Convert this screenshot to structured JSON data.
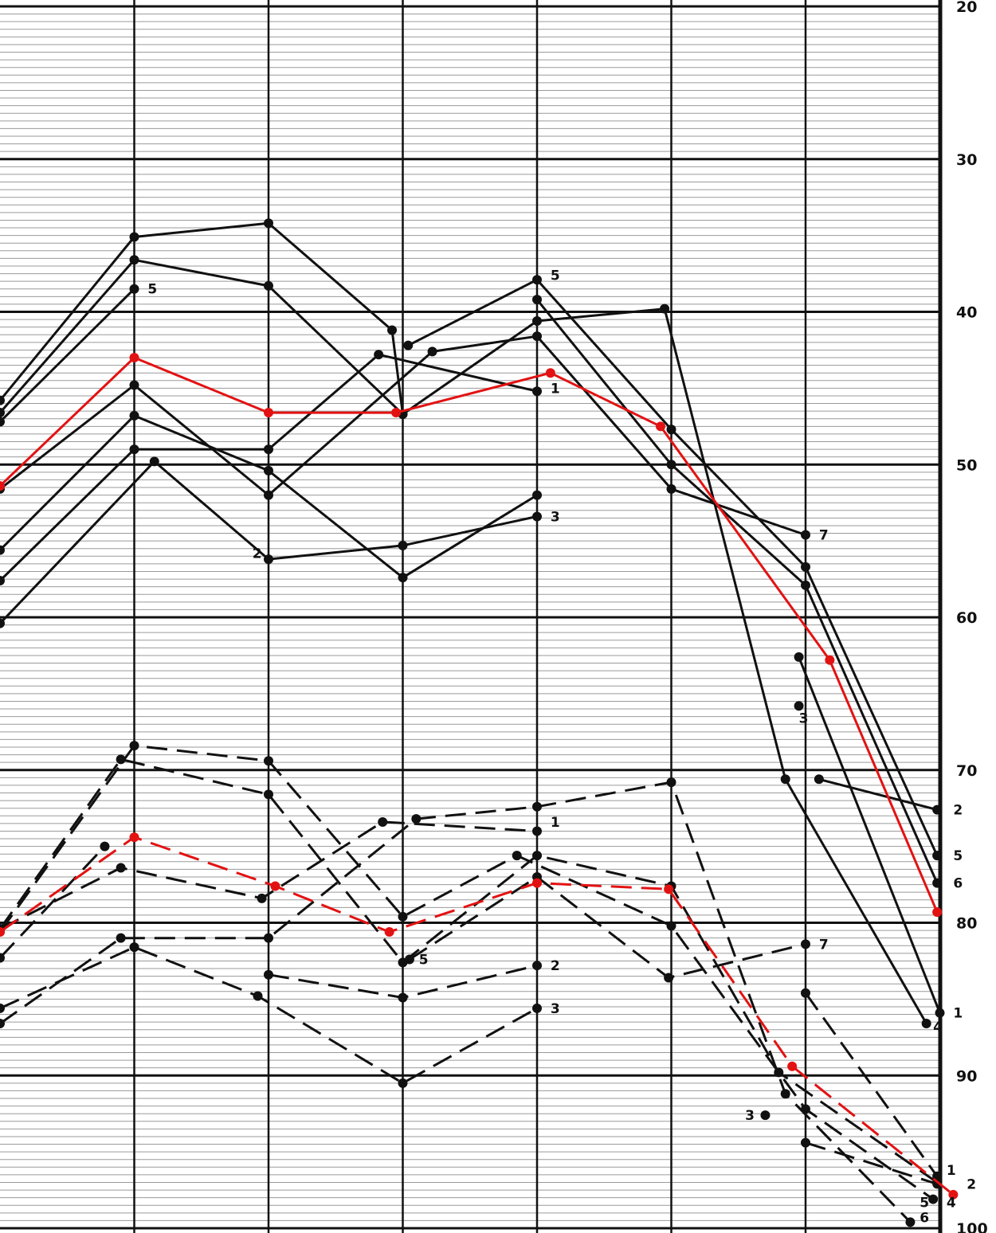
{
  "chart_data": {
    "type": "line",
    "title": "",
    "xlabel": "",
    "ylabel": "",
    "ylim": [
      20,
      100
    ],
    "y_ticks": [
      "20",
      "30",
      "40",
      "50",
      "60",
      "70",
      "80",
      "90",
      "100"
    ],
    "y_axis_side": "right",
    "grid": "minor horizontal every 0.5 units, major every 10 units, vertical column lines",
    "colors": {
      "line": "#111111",
      "highlight": "#e31212"
    },
    "groups": [
      {
        "name": "",
        "style": "solid",
        "series": [
          {
            "name": "",
            "color": "#111111",
            "points": [
              [
                -0.5,
                45.8
              ],
              [
                0.5,
                35.1
              ],
              [
                1.5,
                34.2
              ],
              [
                2.42,
                41.2
              ],
              [
                2.5,
                46.7
              ]
            ]
          },
          {
            "name": "",
            "color": "#111111",
            "points": [
              [
                -0.5,
                46.6
              ],
              [
                0.5,
                36.6
              ],
              [
                1.5,
                38.3
              ],
              [
                2.5,
                46.7
              ],
              [
                3.5,
                40.6
              ],
              [
                4.45,
                39.8
              ],
              [
                5.35,
                70.6
              ],
              [
                6.4,
                86.6
              ]
            ]
          },
          {
            "name": "",
            "color": "#111111",
            "points": [
              [
                -0.5,
                47.2
              ],
              [
                0.5,
                38.5
              ]
            ]
          },
          {
            "name": "",
            "color": "#111111",
            "points": [
              [
                -0.5,
                51.6
              ],
              [
                0.5,
                44.8
              ],
              [
                1.5,
                52.0
              ],
              [
                2.72,
                42.6
              ],
              [
                3.5,
                41.6
              ],
              [
                4.5,
                51.6
              ],
              [
                5.5,
                54.6
              ]
            ]
          },
          {
            "name": "",
            "color": "#111111",
            "points": [
              [
                -0.5,
                55.6
              ],
              [
                0.5,
                46.8
              ],
              [
                1.5,
                50.4
              ],
              [
                2.5,
                57.4
              ],
              [
                3.5,
                52.0
              ]
            ]
          },
          {
            "name": "",
            "color": "#111111",
            "points": [
              [
                -0.5,
                57.6
              ],
              [
                0.5,
                49.0
              ],
              [
                1.5,
                49.0
              ],
              [
                2.32,
                42.8
              ],
              [
                3.5,
                45.2
              ]
            ]
          },
          {
            "name": "",
            "color": "#111111",
            "points": [
              [
                -0.5,
                60.4
              ],
              [
                0.65,
                49.8
              ],
              [
                1.5,
                56.2
              ],
              [
                2.5,
                55.3
              ],
              [
                3.5,
                53.4
              ]
            ]
          },
          {
            "name": "",
            "color": "#111111",
            "points": [
              [
                2.54,
                42.2
              ],
              [
                3.5,
                37.9
              ],
              [
                4.5,
                47.7
              ],
              [
                5.5,
                56.7
              ],
              [
                6.48,
                75.6
              ]
            ]
          },
          {
            "name": "",
            "color": "#111111",
            "points": [
              [
                3.5,
                39.2
              ],
              [
                4.5,
                50.0
              ],
              [
                5.5,
                57.9
              ],
              [
                6.48,
                77.4
              ]
            ]
          },
          {
            "name": "",
            "color": "#111111",
            "points": [
              [
                5.45,
                62.6
              ],
              [
                6.5,
                85.9
              ]
            ]
          },
          {
            "name": "",
            "color": "#111111",
            "points": [
              [
                5.6,
                70.6
              ],
              [
                6.48,
                72.6
              ]
            ]
          },
          {
            "name": "",
            "color": "#111111",
            "points": [
              [
                5.45,
                65.8
              ]
            ]
          }
        ]
      },
      {
        "name": "",
        "style": "solid",
        "series": [
          {
            "name": "",
            "color": "#e31212",
            "points": [
              [
                -0.5,
                51.4
              ],
              [
                0.5,
                43.0
              ],
              [
                1.5,
                46.6
              ],
              [
                2.45,
                46.6
              ],
              [
                3.6,
                44.0
              ],
              [
                4.42,
                47.5
              ],
              [
                5.68,
                62.8
              ],
              [
                6.48,
                79.3
              ]
            ]
          }
        ]
      },
      {
        "name": "",
        "style": "dashed",
        "series": [
          {
            "name": "",
            "color": "#111111",
            "points": [
              [
                -0.5,
                80.4
              ],
              [
                0.4,
                69.3
              ],
              [
                1.5,
                71.6
              ],
              [
                2.5,
                82.6
              ],
              [
                3.5,
                75.6
              ],
              [
                4.5,
                77.6
              ],
              [
                5.3,
                89.8
              ],
              [
                6.48,
                97.0
              ]
            ]
          },
          {
            "name": "",
            "color": "#111111",
            "points": [
              [
                -0.5,
                80.6
              ],
              [
                0.5,
                68.4
              ],
              [
                1.5,
                69.4
              ],
              [
                2.5,
                79.6
              ],
              [
                3.35,
                75.6
              ],
              [
                4.5,
                80.2
              ],
              [
                5.5,
                92.2
              ],
              [
                6.45,
                98.1
              ]
            ]
          },
          {
            "name": "",
            "color": "#111111",
            "points": [
              [
                -0.5,
                82.3
              ],
              [
                0.28,
                75.0
              ]
            ]
          },
          {
            "name": "",
            "color": "#111111",
            "points": [
              [
                -0.5,
                80.4
              ],
              [
                0.4,
                76.4
              ],
              [
                1.45,
                78.4
              ],
              [
                2.35,
                73.4
              ],
              [
                3.5,
                74.0
              ]
            ]
          },
          {
            "name": "",
            "color": "#111111",
            "points": [
              [
                -0.5,
                86.6
              ],
              [
                0.4,
                81.0
              ],
              [
                1.5,
                81.0
              ],
              [
                2.6,
                73.2
              ],
              [
                3.5,
                72.4
              ],
              [
                4.5,
                70.8
              ],
              [
                5.35,
                91.2
              ],
              [
                6.28,
                99.6
              ]
            ]
          },
          {
            "name": "",
            "color": "#111111",
            "points": [
              [
                -0.5,
                85.6
              ],
              [
                0.5,
                81.6
              ],
              [
                1.42,
                84.8
              ],
              [
                2.5,
                90.5
              ],
              [
                3.5,
                85.6
              ]
            ]
          },
          {
            "name": "",
            "color": "#111111",
            "points": [
              [
                2.55,
                82.4
              ],
              [
                3.5,
                77.0
              ],
              [
                4.48,
                83.6
              ],
              [
                5.5,
                81.4
              ]
            ]
          },
          {
            "name": "",
            "color": "#111111",
            "points": [
              [
                1.5,
                83.4
              ],
              [
                2.5,
                84.9
              ],
              [
                3.5,
                82.8
              ]
            ]
          },
          {
            "name": "",
            "color": "#111111",
            "points": [
              [
                5.5,
                84.6
              ],
              [
                6.48,
                96.6
              ]
            ]
          },
          {
            "name": "",
            "color": "#111111",
            "points": [
              [
                5.5,
                94.4
              ],
              [
                6.48,
                97.1
              ]
            ]
          },
          {
            "name": "",
            "color": "#111111",
            "points": [
              [
                5.2,
                92.6
              ]
            ]
          }
        ]
      },
      {
        "name": "",
        "style": "dashed",
        "series": [
          {
            "name": "",
            "color": "#e31212",
            "points": [
              [
                -0.5,
                80.6
              ],
              [
                0.5,
                74.4
              ],
              [
                1.55,
                77.6
              ],
              [
                2.4,
                80.6
              ],
              [
                3.5,
                77.4
              ],
              [
                4.48,
                77.8
              ],
              [
                5.4,
                89.4
              ],
              [
                6.6,
                97.8
              ]
            ]
          }
        ]
      }
    ],
    "annotations": [
      {
        "text": "5",
        "x": 0.6,
        "y": 38.5
      },
      {
        "text": "5",
        "x": 3.6,
        "y": 37.6
      },
      {
        "text": "1",
        "x": 3.6,
        "y": 45.0
      },
      {
        "text": "7",
        "x": 5.6,
        "y": 54.6
      },
      {
        "text": "2",
        "x": 1.38,
        "y": 55.8
      },
      {
        "text": "3",
        "x": 3.6,
        "y": 53.4
      },
      {
        "text": "3",
        "x": 5.45,
        "y": 66.6
      },
      {
        "text": "2",
        "x": 6.6,
        "y": 72.6
      },
      {
        "text": "5",
        "x": 6.6,
        "y": 75.6
      },
      {
        "text": "6",
        "x": 6.6,
        "y": 77.4
      },
      {
        "text": "1",
        "x": 6.6,
        "y": 85.9
      },
      {
        "text": "4",
        "x": 6.45,
        "y": 86.8
      },
      {
        "text": "1",
        "x": 3.6,
        "y": 73.4
      },
      {
        "text": "5",
        "x": 2.62,
        "y": 82.4
      },
      {
        "text": "7",
        "x": 5.6,
        "y": 81.4
      },
      {
        "text": "2",
        "x": 3.6,
        "y": 82.8
      },
      {
        "text": "3",
        "x": 3.6,
        "y": 85.6
      },
      {
        "text": "3",
        "x": 5.05,
        "y": 92.6
      },
      {
        "text": "1",
        "x": 6.55,
        "y": 96.2
      },
      {
        "text": "2",
        "x": 6.7,
        "y": 97.1
      },
      {
        "text": "5",
        "x": 6.35,
        "y": 98.3
      },
      {
        "text": "4",
        "x": 6.55,
        "y": 98.3
      },
      {
        "text": "6",
        "x": 6.35,
        "y": 99.3
      }
    ]
  }
}
